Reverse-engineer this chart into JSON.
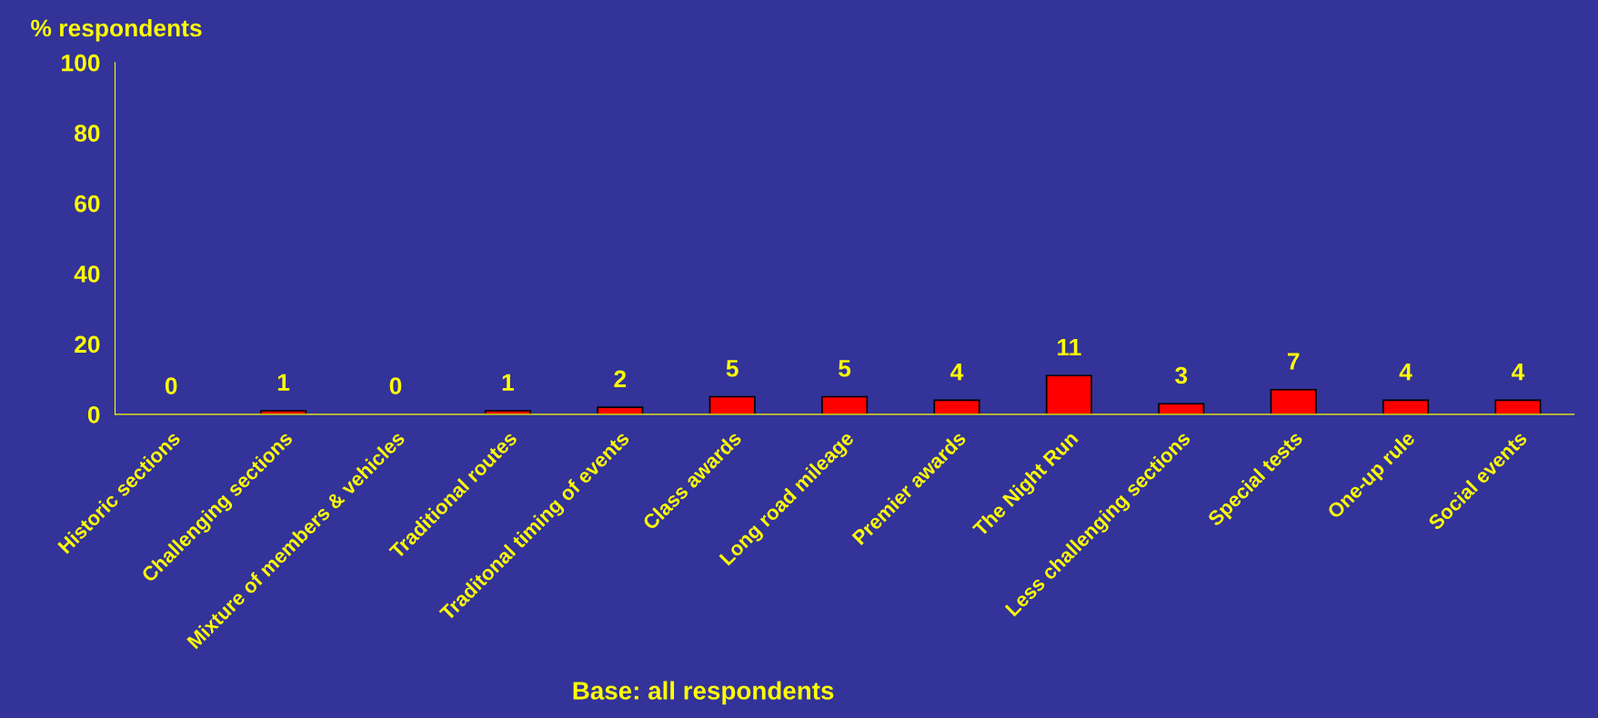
{
  "chart_data": {
    "type": "bar",
    "ylabel": "% respondents",
    "categories": [
      "Historic sections",
      "Challenging sections",
      "Mixture of members & vehicles",
      "Traditional routes",
      "Traditonal timing of events",
      "Class awards",
      "Long road mileage",
      "Premier awards",
      "The Night Run",
      "Less challenging sections",
      "Special tests",
      "One-up rule",
      "Social events"
    ],
    "values": [
      0,
      1,
      0,
      1,
      2,
      5,
      5,
      4,
      11,
      3,
      7,
      4,
      4
    ],
    "color": "#ff0000",
    "ylim": [
      0,
      100
    ],
    "yticks": [
      0,
      20,
      40,
      60,
      80,
      100
    ],
    "data_labels": true,
    "grid": false,
    "legend": false,
    "annotations": [
      "Base: all respondents"
    ]
  }
}
